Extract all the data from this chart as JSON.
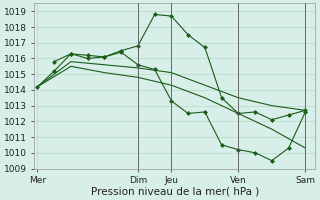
{
  "title": "",
  "xlabel": "Pression niveau de la mer( hPa )",
  "ylabel": "",
  "background_color": "#d8eee8",
  "grid_color": "#b8d8c8",
  "line_color": "#1a5c1a",
  "ylim": [
    1009,
    1019.5
  ],
  "yticks": [
    1009,
    1010,
    1011,
    1012,
    1013,
    1014,
    1015,
    1016,
    1017,
    1018,
    1019
  ],
  "day_labels": [
    "Mer",
    "Dim",
    "Jeu",
    "Ven",
    "Sam"
  ],
  "day_positions": [
    0,
    3,
    4,
    6,
    8
  ],
  "series1_x": [
    0,
    0.5,
    1.0,
    1.5,
    2.0,
    2.5,
    3.0,
    3.5,
    4.0,
    4.5,
    5.0,
    5.5,
    6.0,
    6.5,
    7.0,
    7.5,
    8.0
  ],
  "series1_y": [
    1014.2,
    1015.2,
    1016.3,
    1016.2,
    1016.1,
    1016.5,
    1016.8,
    1018.8,
    1018.7,
    1017.5,
    1016.7,
    1013.5,
    1012.5,
    1012.6,
    1012.1,
    1012.4,
    1012.7
  ],
  "series2_x": [
    0,
    1,
    2,
    3,
    4,
    5,
    6,
    7,
    8
  ],
  "series2_y": [
    1014.2,
    1015.8,
    1015.6,
    1015.4,
    1015.1,
    1014.3,
    1013.5,
    1013.0,
    1012.7
  ],
  "series3_x": [
    0,
    1,
    2,
    3,
    4,
    5,
    6,
    7,
    8
  ],
  "series3_y": [
    1014.2,
    1015.5,
    1015.1,
    1014.8,
    1014.3,
    1013.5,
    1012.5,
    1011.5,
    1010.3
  ],
  "series4_x": [
    0.5,
    1.0,
    1.5,
    2.0,
    2.5,
    3.0,
    3.5,
    4.0,
    4.5,
    5.0,
    5.5,
    6.0,
    6.5,
    7.0,
    7.5,
    8.0
  ],
  "series4_y": [
    1015.8,
    1016.3,
    1016.0,
    1016.1,
    1016.4,
    1015.6,
    1015.3,
    1013.3,
    1012.5,
    1012.6,
    1010.5,
    1010.2,
    1010.0,
    1009.5,
    1010.3,
    1012.6
  ],
  "vline_color": "#555555",
  "vline_positions": [
    3,
    4,
    6,
    8
  ],
  "tick_fontsize": 6.5,
  "label_fontsize": 7.5,
  "figwidth": 3.2,
  "figheight": 2.0,
  "dpi": 100
}
